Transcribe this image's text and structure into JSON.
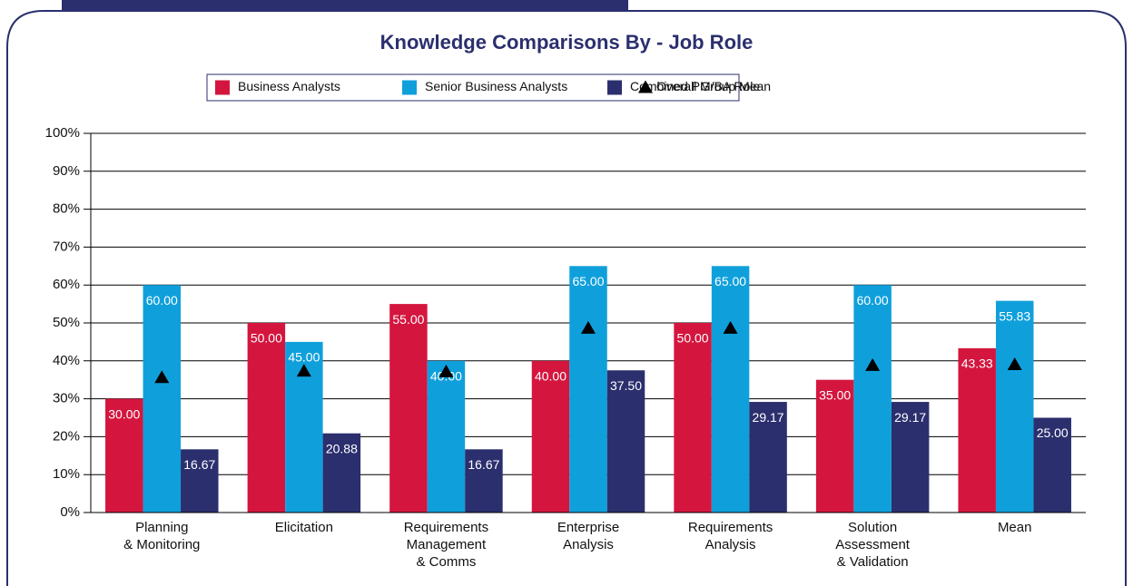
{
  "chart_data": {
    "type": "bar",
    "title": "Knowledge Comparisons By - Job Role",
    "categories": [
      [
        "Planning",
        "& Monitoring"
      ],
      [
        "Elicitation"
      ],
      [
        "Requirements",
        "Management",
        "& Comms"
      ],
      [
        "Enterprise",
        "Analysis"
      ],
      [
        "Requirements",
        "Analysis"
      ],
      [
        "Solution",
        "Assessment",
        "& Validation"
      ],
      [
        "Mean"
      ]
    ],
    "series": [
      {
        "name": "Business Analysts",
        "color": "#d4163f",
        "values": [
          30,
          50,
          55,
          40,
          50,
          35,
          43.33
        ],
        "value_labels": [
          "30.00",
          "50.00",
          "55.00",
          "40.00",
          "50.00",
          "35.00",
          "43.33"
        ]
      },
      {
        "name": "Senior Business Analysts",
        "color": "#0fa0dc",
        "values": [
          60,
          45,
          40,
          65,
          65,
          60,
          55.83
        ],
        "value_labels": [
          "60.00",
          "45.00",
          "40.00",
          "65.00",
          "65.00",
          "60.00",
          "55.83"
        ]
      },
      {
        "name": "Combined PM/BA Role",
        "color": "#2b2f6e",
        "values": [
          16.67,
          20.88,
          16.67,
          37.5,
          29.17,
          29.17,
          25
        ],
        "value_labels": [
          "16.67",
          "20.88",
          "16.67",
          "37.50",
          "29.17",
          "29.17",
          "25.00"
        ]
      },
      {
        "name": "Overall Group Mean",
        "color": "#000000",
        "marker": "triangle",
        "values": [
          35.6,
          37.3,
          37.1,
          48.6,
          48.6,
          38.8,
          39.0
        ]
      }
    ],
    "ylim": [
      0,
      100
    ],
    "yticks": [
      {
        "value": 0,
        "label": "0%"
      },
      {
        "value": 10,
        "label": "10%"
      },
      {
        "value": 20,
        "label": "20%"
      },
      {
        "value": 30,
        "label": "30%"
      },
      {
        "value": 40,
        "label": "40%"
      },
      {
        "value": 50,
        "label": "50%"
      },
      {
        "value": 60,
        "label": "60%"
      },
      {
        "value": 70,
        "label": "70%"
      },
      {
        "value": 80,
        "label": "80%"
      },
      {
        "value": 90,
        "label": "90%"
      },
      {
        "value": 100,
        "label": "100%"
      }
    ],
    "grid": true,
    "legend": "top"
  }
}
